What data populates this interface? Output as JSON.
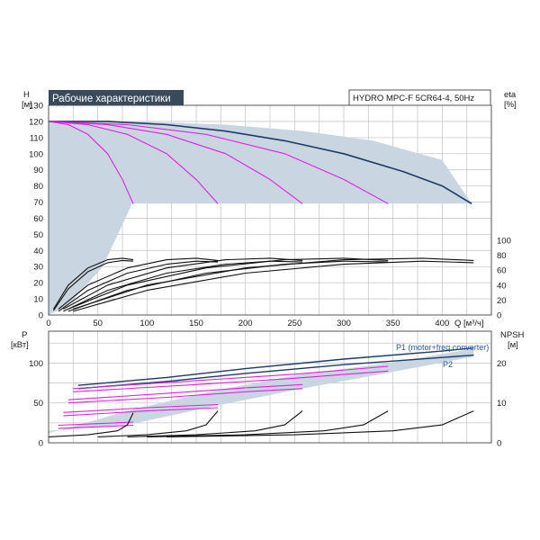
{
  "colors": {
    "area": "#c9d6e1",
    "navy": "#1b3b66",
    "magenta": "#e020e0",
    "black": "#111111",
    "title_bg": "#3a4a5a",
    "title_text": "#ffffff",
    "p1_label": "#2a5a9a"
  },
  "chart_data": [
    {
      "type": "line",
      "title": "Рабочие характеристики",
      "subtitle": "HYDRO MPC-F 5CR64-4, 50Hz",
      "ylabel": "H",
      "yunit": "[м]",
      "y2label": "eta",
      "y2unit": "[%]",
      "xlabel": "Q",
      "xunit": "[м³/ч]",
      "xlim": [
        0,
        450
      ],
      "ylim": [
        0,
        130
      ],
      "y2lim": [
        0,
        100
      ],
      "xticks": [
        "0",
        "50",
        "100",
        "150",
        "200",
        "250",
        "300",
        "350",
        "400"
      ],
      "yticks": [
        "0",
        "10",
        "20",
        "30",
        "40",
        "50",
        "60",
        "70",
        "80",
        "90",
        "100",
        "110",
        "120",
        "130"
      ],
      "y2ticks": [
        "0",
        "20",
        "40",
        "60",
        "80",
        "100"
      ],
      "grid": true,
      "shaded_area": [
        [
          0,
          120
        ],
        [
          90,
          120
        ],
        [
          180,
          118
        ],
        [
          260,
          114
        ],
        [
          330,
          108
        ],
        [
          400,
          96
        ],
        [
          430,
          69
        ],
        [
          85,
          69
        ],
        [
          55,
          30
        ],
        [
          20,
          6
        ],
        [
          0,
          0
        ]
      ],
      "series": [
        {
          "role": "envelope",
          "color": "navy",
          "x": [
            0,
            60,
            120,
            180,
            240,
            300,
            360,
            400,
            430
          ],
          "y": [
            120,
            120,
            118,
            114,
            108,
            100,
            89,
            80,
            69
          ]
        },
        {
          "role": "head",
          "color": "magenta",
          "x": [
            0,
            20,
            40,
            60,
            75,
            86
          ],
          "y": [
            120,
            118,
            112,
            100,
            84,
            69
          ]
        },
        {
          "role": "head",
          "color": "magenta",
          "x": [
            0,
            40,
            80,
            120,
            150,
            172
          ],
          "y": [
            120,
            118,
            112,
            100,
            84,
            69
          ]
        },
        {
          "role": "head",
          "color": "magenta",
          "x": [
            0,
            60,
            120,
            180,
            225,
            258
          ],
          "y": [
            120,
            118,
            112,
            100,
            84,
            69
          ]
        },
        {
          "role": "head",
          "color": "magenta",
          "x": [
            0,
            80,
            160,
            240,
            300,
            345
          ],
          "y": [
            120,
            118,
            112,
            100,
            84,
            69
          ]
        },
        {
          "role": "eta",
          "color": "black",
          "axis": "y2",
          "x": [
            5,
            20,
            40,
            60,
            75,
            86
          ],
          "y": [
            8,
            40,
            63,
            74,
            76,
            74
          ]
        },
        {
          "role": "eta",
          "color": "black",
          "axis": "y2",
          "x": [
            5,
            20,
            40,
            60,
            75,
            86
          ],
          "y": [
            6,
            35,
            58,
            70,
            73,
            72
          ]
        },
        {
          "role": "eta",
          "color": "black",
          "axis": "y2",
          "x": [
            10,
            40,
            80,
            120,
            150,
            172
          ],
          "y": [
            8,
            40,
            63,
            74,
            76,
            73
          ]
        },
        {
          "role": "eta",
          "color": "black",
          "axis": "y2",
          "x": [
            10,
            40,
            80,
            120,
            150,
            172
          ],
          "y": [
            5,
            33,
            56,
            68,
            72,
            71
          ]
        },
        {
          "role": "eta",
          "color": "black",
          "axis": "y2",
          "x": [
            15,
            60,
            120,
            180,
            225,
            258
          ],
          "y": [
            8,
            40,
            63,
            74,
            76,
            73
          ]
        },
        {
          "role": "eta",
          "color": "black",
          "axis": "y2",
          "x": [
            15,
            60,
            120,
            180,
            225,
            258
          ],
          "y": [
            5,
            33,
            56,
            68,
            72,
            71
          ]
        },
        {
          "role": "eta",
          "color": "black",
          "axis": "y2",
          "x": [
            20,
            80,
            160,
            240,
            300,
            345
          ],
          "y": [
            8,
            40,
            63,
            74,
            76,
            73
          ]
        },
        {
          "role": "eta",
          "color": "black",
          "axis": "y2",
          "x": [
            20,
            80,
            160,
            240,
            300,
            345
          ],
          "y": [
            5,
            33,
            56,
            68,
            72,
            71
          ]
        },
        {
          "role": "eta",
          "color": "black",
          "axis": "y2",
          "x": [
            25,
            100,
            200,
            300,
            380,
            432
          ],
          "y": [
            8,
            40,
            63,
            74,
            76,
            73
          ]
        },
        {
          "role": "eta",
          "color": "black",
          "axis": "y2",
          "x": [
            25,
            100,
            200,
            300,
            380,
            432
          ],
          "y": [
            5,
            33,
            56,
            68,
            72,
            70
          ]
        }
      ]
    },
    {
      "type": "line",
      "ylabel": "P",
      "yunit": "[кВт]",
      "y2label": "NPSH",
      "y2unit": "[м]",
      "xlim": [
        0,
        450
      ],
      "ylim": [
        0,
        140
      ],
      "y2lim": [
        0,
        28
      ],
      "yticks": [
        "0",
        "50",
        "100"
      ],
      "y2ticks": [
        "0",
        "10",
        "20"
      ],
      "grid": true,
      "shaded_area": [
        [
          0,
          15
        ],
        [
          86,
          24
        ],
        [
          172,
          47
        ],
        [
          258,
          68
        ],
        [
          345,
          88
        ],
        [
          432,
          108
        ],
        [
          432,
          118
        ],
        [
          345,
          100
        ],
        [
          258,
          86
        ],
        [
          172,
          66
        ],
        [
          86,
          42
        ],
        [
          0,
          12
        ]
      ],
      "series": [
        {
          "name": "P1 (motor+freq.converter)",
          "color": "navy",
          "x": [
            30,
            120,
            200,
            300,
            400,
            432
          ],
          "y": [
            72,
            82,
            93,
            105,
            115,
            119
          ]
        },
        {
          "name": "P2",
          "color": "navy",
          "x": [
            30,
            120,
            200,
            300,
            400,
            432
          ],
          "y": [
            68,
            77,
            87,
            98,
            107,
            110
          ]
        },
        {
          "role": "power",
          "color": "magenta",
          "x": [
            25,
            150,
            250,
            345
          ],
          "y": [
            68,
            78,
            86,
            96
          ]
        },
        {
          "role": "power",
          "color": "magenta",
          "x": [
            25,
            150,
            250,
            345
          ],
          "y": [
            64,
            73,
            81,
            90
          ]
        },
        {
          "role": "power",
          "color": "magenta",
          "x": [
            20,
            120,
            200,
            258
          ],
          "y": [
            54,
            62,
            69,
            73
          ]
        },
        {
          "role": "power",
          "color": "magenta",
          "x": [
            20,
            120,
            200,
            258
          ],
          "y": [
            50,
            57,
            64,
            68
          ]
        },
        {
          "role": "power",
          "color": "magenta",
          "x": [
            15,
            100,
            172
          ],
          "y": [
            38,
            44,
            48
          ]
        },
        {
          "role": "power",
          "color": "magenta",
          "x": [
            15,
            100,
            172
          ],
          "y": [
            34,
            40,
            44
          ]
        },
        {
          "role": "power",
          "color": "magenta",
          "x": [
            10,
            50,
            86
          ],
          "y": [
            22,
            24,
            26
          ]
        },
        {
          "role": "power",
          "color": "magenta",
          "x": [
            10,
            50,
            86
          ],
          "y": [
            18,
            20,
            22
          ]
        },
        {
          "role": "npsh",
          "color": "black",
          "axis": "y2",
          "x": [
            0,
            40,
            70,
            80,
            86
          ],
          "y": [
            1.5,
            2.0,
            3.0,
            4.5,
            7.5
          ]
        },
        {
          "role": "npsh",
          "color": "black",
          "axis": "y2",
          "x": [
            50,
            100,
            140,
            160,
            172
          ],
          "y": [
            1.5,
            2.0,
            3.0,
            4.5,
            8.0
          ]
        },
        {
          "role": "npsh",
          "color": "black",
          "axis": "y2",
          "x": [
            80,
            150,
            210,
            240,
            258
          ],
          "y": [
            1.5,
            2.0,
            3.0,
            4.5,
            8.0
          ]
        },
        {
          "role": "npsh",
          "color": "black",
          "axis": "y2",
          "x": [
            100,
            200,
            280,
            320,
            345
          ],
          "y": [
            1.5,
            2.0,
            3.0,
            4.5,
            8.0
          ]
        },
        {
          "role": "npsh",
          "color": "black",
          "axis": "y2",
          "x": [
            120,
            250,
            350,
            400,
            432
          ],
          "y": [
            1.5,
            2.0,
            3.0,
            4.5,
            8.0
          ]
        }
      ]
    }
  ]
}
